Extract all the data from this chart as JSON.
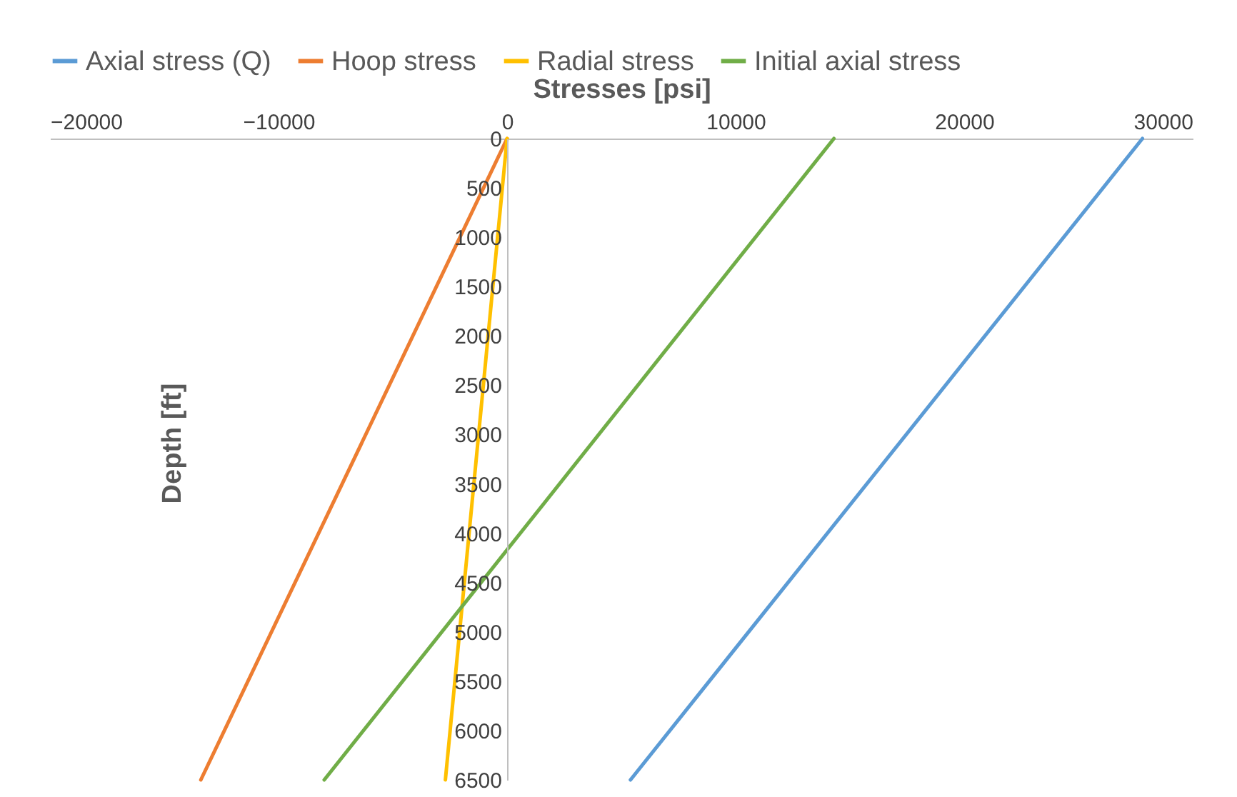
{
  "chart_data": {
    "type": "line",
    "xlabel": "Stresses [psi]",
    "ylabel": "Depth [ft]",
    "xlim": [
      -20000,
      30000
    ],
    "xticks": [
      -20000,
      -10000,
      0,
      10000,
      20000,
      30000
    ],
    "ylim": [
      6500,
      0
    ],
    "yticks": [
      0,
      500,
      1000,
      1500,
      2000,
      2500,
      3000,
      3500,
      4000,
      4500,
      5000,
      5500,
      6000,
      6500
    ],
    "grid": false,
    "legend": "top",
    "marker": "none",
    "line_style": "solid",
    "series": [
      {
        "name": "Axial stress (Q)",
        "color": "#5b9bd5",
        "x": [
          27800,
          5400
        ],
        "values": [
          0,
          6500
        ]
      },
      {
        "name": "Hoop stress",
        "color": "#ed7d31",
        "x": [
          0,
          -13400
        ],
        "values": [
          0,
          6500
        ]
      },
      {
        "name": "Radial stress",
        "color": "#ffc000",
        "x": [
          0,
          -2700
        ],
        "values": [
          0,
          6500
        ]
      },
      {
        "name": "Initial axial stress",
        "color": "#70ad47",
        "x": [
          14300,
          -8000
        ],
        "values": [
          0,
          6500
        ]
      }
    ]
  }
}
